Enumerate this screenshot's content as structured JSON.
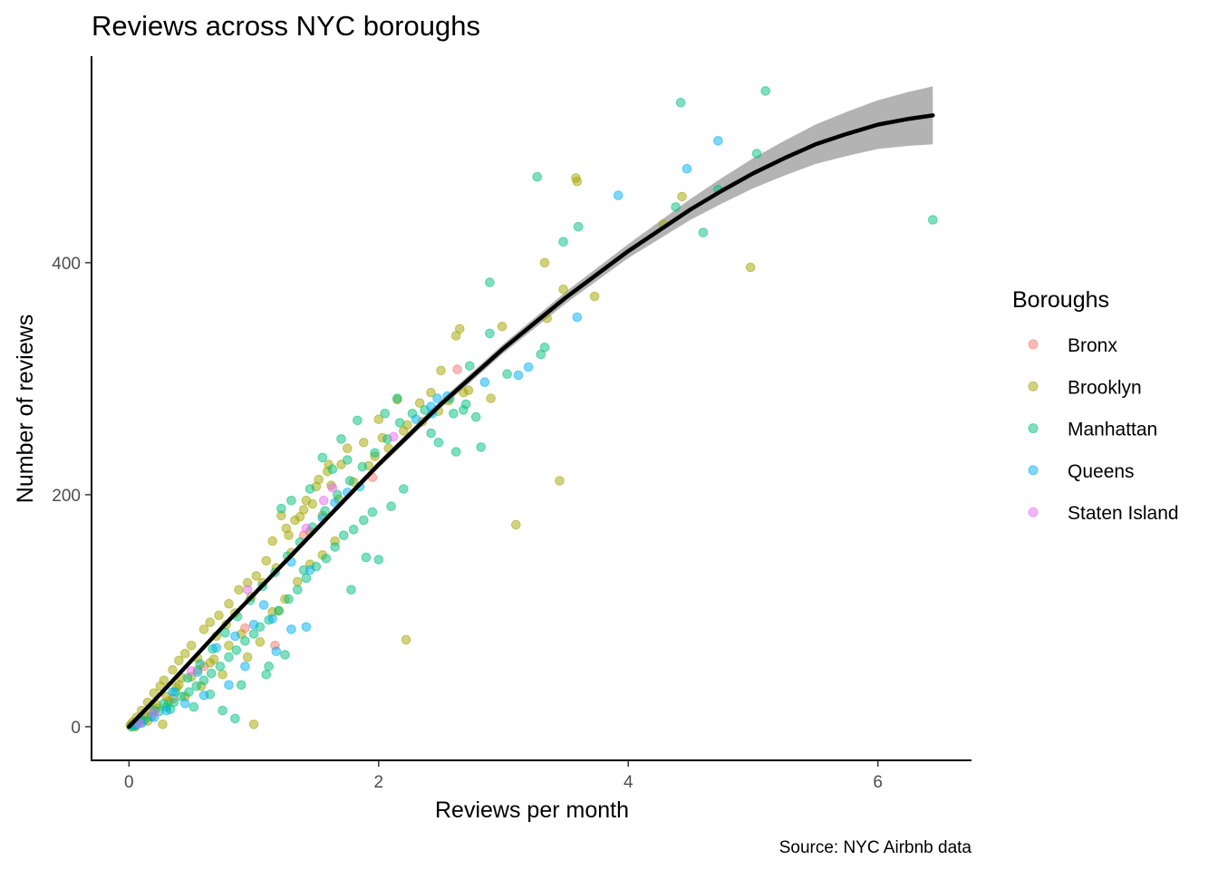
{
  "chart_data": {
    "type": "scatter",
    "title": "Reviews across NYC boroughs",
    "xlabel": "Reviews per month",
    "ylabel": "Number of reviews",
    "caption": "Source: NYC Airbnb data",
    "xlim": [
      -0.3,
      6.75
    ],
    "ylim": [
      -29,
      578
    ],
    "x_ticks": [
      0,
      2,
      4,
      6
    ],
    "y_ticks": [
      0,
      200,
      400
    ],
    "grid": false,
    "legend": {
      "title": "Boroughs",
      "position": "right"
    },
    "series": [
      {
        "name": "Bronx",
        "color": "#F8766D",
        "points": [
          [
            2.63,
            308
          ],
          [
            1.17,
            70
          ],
          [
            0.93,
            85
          ],
          [
            0.6,
            52
          ],
          [
            0.35,
            24
          ],
          [
            0.15,
            8
          ],
          [
            0.05,
            2
          ],
          [
            1.4,
            165
          ],
          [
            1.95,
            215
          ]
        ]
      },
      {
        "name": "Brooklyn",
        "color": "#A3A500",
        "points": [
          [
            3.58,
            473
          ],
          [
            3.59,
            470
          ],
          [
            4.43,
            457
          ],
          [
            4.28,
            433
          ],
          [
            3.33,
            400
          ],
          [
            4.98,
            396
          ],
          [
            3.48,
            377
          ],
          [
            3.73,
            371
          ],
          [
            2.99,
            345
          ],
          [
            2.65,
            343
          ],
          [
            2.62,
            337
          ],
          [
            3.35,
            352
          ],
          [
            2.5,
            307
          ],
          [
            2.42,
            288
          ],
          [
            2.33,
            279
          ],
          [
            2.15,
            282
          ],
          [
            2.0,
            265
          ],
          [
            2.2,
            255
          ],
          [
            2.03,
            249
          ],
          [
            1.97,
            233
          ],
          [
            1.88,
            245
          ],
          [
            1.75,
            240
          ],
          [
            1.7,
            226
          ],
          [
            1.59,
            220
          ],
          [
            1.62,
            208
          ],
          [
            1.5,
            207
          ],
          [
            1.47,
            192
          ],
          [
            1.4,
            187
          ],
          [
            1.33,
            178
          ],
          [
            1.22,
            182
          ],
          [
            1.28,
            165
          ],
          [
            1.15,
            160
          ],
          [
            1.1,
            143
          ],
          [
            1.02,
            130
          ],
          [
            0.95,
            124
          ],
          [
            0.88,
            118
          ],
          [
            0.8,
            106
          ],
          [
            0.72,
            96
          ],
          [
            0.65,
            90
          ],
          [
            0.6,
            84
          ],
          [
            0.5,
            70
          ],
          [
            0.45,
            63
          ],
          [
            0.4,
            57
          ],
          [
            0.35,
            49
          ],
          [
            0.28,
            40
          ],
          [
            0.25,
            35
          ],
          [
            0.2,
            29
          ],
          [
            0.15,
            21
          ],
          [
            0.1,
            14
          ],
          [
            0.06,
            8
          ],
          [
            0.03,
            4
          ],
          [
            0.01,
            1
          ],
          [
            0.02,
            2
          ],
          [
            0.05,
            0
          ],
          [
            0.08,
            6
          ],
          [
            0.12,
            10
          ],
          [
            0.18,
            14
          ],
          [
            0.22,
            19
          ],
          [
            0.3,
            26
          ],
          [
            0.38,
            34
          ],
          [
            0.42,
            42
          ],
          [
            0.55,
            59
          ],
          [
            0.7,
            78
          ],
          [
            0.78,
            88
          ],
          [
            0.85,
            98
          ],
          [
            0.98,
            112
          ],
          [
            1.07,
            124
          ],
          [
            1.18,
            137
          ],
          [
            1.3,
            150
          ],
          [
            1.45,
            168
          ],
          [
            1.55,
            182
          ],
          [
            1.68,
            196
          ],
          [
            1.8,
            211
          ],
          [
            1.92,
            225
          ],
          [
            2.08,
            240
          ],
          [
            2.23,
            260
          ],
          [
            2.35,
            263
          ],
          [
            2.48,
            272
          ],
          [
            2.56,
            281
          ],
          [
            2.68,
            288
          ],
          [
            2.72,
            290
          ],
          [
            2.9,
            283
          ],
          [
            3.1,
            174
          ],
          [
            3.45,
            212
          ],
          [
            2.22,
            75
          ],
          [
            1.0,
            2
          ],
          [
            0.27,
            2
          ],
          [
            1.05,
            73
          ],
          [
            0.95,
            60
          ],
          [
            0.75,
            45
          ],
          [
            0.5,
            43
          ],
          [
            0.58,
            35
          ],
          [
            0.32,
            22
          ],
          [
            0.45,
            26
          ],
          [
            0.65,
            55
          ],
          [
            0.8,
            70
          ],
          [
            0.9,
            80
          ],
          [
            1.15,
            99
          ],
          [
            1.25,
            110
          ],
          [
            1.35,
            125
          ],
          [
            1.45,
            140
          ],
          [
            1.55,
            148
          ],
          [
            1.65,
            160
          ],
          [
            1.2,
            100
          ],
          [
            0.68,
            58
          ],
          [
            0.4,
            36
          ],
          [
            0.22,
            16
          ],
          [
            0.15,
            5
          ],
          [
            0.55,
            49
          ],
          [
            1.6,
            226
          ],
          [
            1.52,
            213
          ],
          [
            1.42,
            195
          ],
          [
            1.37,
            181
          ],
          [
            1.26,
            171
          ]
        ]
      },
      {
        "name": "Manhattan",
        "color": "#00BF7D",
        "points": [
          [
            5.1,
            548
          ],
          [
            4.42,
            538
          ],
          [
            5.03,
            494
          ],
          [
            4.72,
            463
          ],
          [
            4.38,
            448
          ],
          [
            3.27,
            474
          ],
          [
            3.6,
            431
          ],
          [
            3.48,
            418
          ],
          [
            4.6,
            426
          ],
          [
            6.44,
            437
          ],
          [
            2.89,
            383
          ],
          [
            3.33,
            327
          ],
          [
            3.3,
            321
          ],
          [
            2.89,
            339
          ],
          [
            3.03,
            304
          ],
          [
            2.73,
            311
          ],
          [
            2.68,
            273
          ],
          [
            2.78,
            267
          ],
          [
            2.82,
            241
          ],
          [
            2.62,
            237
          ],
          [
            2.48,
            245
          ],
          [
            2.42,
            253
          ],
          [
            2.2,
            205
          ],
          [
            2.1,
            190
          ],
          [
            1.95,
            185
          ],
          [
            1.88,
            178
          ],
          [
            1.8,
            170
          ],
          [
            1.72,
            165
          ],
          [
            1.65,
            155
          ],
          [
            1.58,
            145
          ],
          [
            1.5,
            138
          ],
          [
            1.42,
            128
          ],
          [
            1.35,
            118
          ],
          [
            1.28,
            110
          ],
          [
            1.2,
            100
          ],
          [
            1.12,
            92
          ],
          [
            1.05,
            86
          ],
          [
            1.0,
            80
          ],
          [
            0.93,
            74
          ],
          [
            0.86,
            66
          ],
          [
            0.8,
            60
          ],
          [
            0.73,
            52
          ],
          [
            0.66,
            46
          ],
          [
            0.6,
            40
          ],
          [
            0.54,
            35
          ],
          [
            0.48,
            30
          ],
          [
            0.42,
            26
          ],
          [
            0.36,
            21
          ],
          [
            0.3,
            17
          ],
          [
            0.24,
            13
          ],
          [
            0.18,
            9
          ],
          [
            0.12,
            5
          ],
          [
            0.08,
            3
          ],
          [
            0.04,
            1
          ],
          [
            0.02,
            0
          ],
          [
            0.1,
            6
          ],
          [
            0.2,
            14
          ],
          [
            0.28,
            20
          ],
          [
            0.37,
            30
          ],
          [
            0.47,
            42
          ],
          [
            0.57,
            54
          ],
          [
            0.67,
            67
          ],
          [
            0.77,
            81
          ],
          [
            0.87,
            95
          ],
          [
            0.97,
            109
          ],
          [
            1.07,
            121
          ],
          [
            1.17,
            133
          ],
          [
            1.27,
            147
          ],
          [
            1.37,
            159
          ],
          [
            1.47,
            172
          ],
          [
            1.57,
            186
          ],
          [
            1.67,
            200
          ],
          [
            1.77,
            212
          ],
          [
            1.87,
            224
          ],
          [
            1.97,
            236
          ],
          [
            2.07,
            248
          ],
          [
            2.17,
            262
          ],
          [
            2.27,
            270
          ],
          [
            2.37,
            273
          ],
          [
            2.57,
            283
          ],
          [
            2.7,
            278
          ],
          [
            2.6,
            270
          ],
          [
            1.9,
            146
          ],
          [
            2.0,
            144
          ],
          [
            1.78,
            118
          ],
          [
            1.4,
            135
          ],
          [
            1.1,
            45
          ],
          [
            1.12,
            52
          ],
          [
            0.85,
            7
          ],
          [
            0.75,
            14
          ],
          [
            1.55,
            232
          ],
          [
            1.63,
            222
          ],
          [
            1.75,
            230
          ],
          [
            1.83,
            264
          ],
          [
            2.15,
            283
          ],
          [
            2.05,
            270
          ],
          [
            1.45,
            205
          ],
          [
            1.3,
            195
          ],
          [
            1.22,
            188
          ],
          [
            1.7,
            248
          ],
          [
            0.65,
            28
          ],
          [
            0.9,
            36
          ],
          [
            1.25,
            62
          ],
          [
            0.33,
            15
          ],
          [
            0.52,
            17
          ]
        ]
      },
      {
        "name": "Queens",
        "color": "#00B0F6",
        "points": [
          [
            4.72,
            505
          ],
          [
            4.47,
            481
          ],
          [
            3.92,
            458
          ],
          [
            3.59,
            353
          ],
          [
            3.2,
            310
          ],
          [
            3.12,
            303
          ],
          [
            2.55,
            285
          ],
          [
            2.47,
            283
          ],
          [
            2.42,
            276
          ],
          [
            2.43,
            270
          ],
          [
            1.85,
            207
          ],
          [
            1.75,
            202
          ],
          [
            1.65,
            193
          ],
          [
            1.15,
            93
          ],
          [
            1.45,
            135
          ],
          [
            1.42,
            86
          ],
          [
            1.3,
            84
          ],
          [
            1.18,
            65
          ],
          [
            0.93,
            52
          ],
          [
            0.8,
            36
          ],
          [
            0.6,
            27
          ],
          [
            0.45,
            20
          ],
          [
            0.3,
            14
          ],
          [
            0.2,
            8
          ],
          [
            0.1,
            3
          ],
          [
            0.05,
            1
          ],
          [
            1.0,
            88
          ],
          [
            0.7,
            68
          ],
          [
            0.55,
            47
          ],
          [
            0.35,
            30
          ],
          [
            1.3,
            142
          ],
          [
            1.55,
            180
          ],
          [
            2.3,
            265
          ],
          [
            2.85,
            297
          ],
          [
            1.08,
            105
          ],
          [
            0.85,
            78
          ]
        ]
      },
      {
        "name": "Staten Island",
        "color": "#E76BF3",
        "points": [
          [
            1.63,
            206
          ],
          [
            1.56,
            195
          ],
          [
            1.42,
            171
          ],
          [
            2.12,
            250
          ],
          [
            0.95,
            118
          ],
          [
            0.5,
            48
          ],
          [
            0.2,
            12
          ],
          [
            0.08,
            3
          ]
        ]
      }
    ],
    "smooth_line": {
      "color": "#000000",
      "ribbon_color": "#999999",
      "points": [
        [
          0.0,
          0
        ],
        [
          0.25,
          28
        ],
        [
          0.5,
          57
        ],
        [
          0.75,
          86
        ],
        [
          1.0,
          114
        ],
        [
          1.25,
          142
        ],
        [
          1.5,
          170
        ],
        [
          1.75,
          198
        ],
        [
          2.0,
          226
        ],
        [
          2.25,
          252
        ],
        [
          2.5,
          278
        ],
        [
          2.75,
          302
        ],
        [
          3.0,
          326
        ],
        [
          3.25,
          348
        ],
        [
          3.5,
          370
        ],
        [
          3.75,
          390
        ],
        [
          4.0,
          410
        ],
        [
          4.25,
          428
        ],
        [
          4.5,
          446
        ],
        [
          4.75,
          462
        ],
        [
          5.0,
          477
        ],
        [
          5.25,
          490
        ],
        [
          5.5,
          502
        ],
        [
          5.75,
          511
        ],
        [
          6.0,
          519
        ],
        [
          6.25,
          524
        ],
        [
          6.44,
          527
        ]
      ],
      "ribbon_halfwidth": [
        [
          0.0,
          2
        ],
        [
          2.0,
          3
        ],
        [
          3.0,
          4
        ],
        [
          3.5,
          5
        ],
        [
          4.0,
          6
        ],
        [
          4.5,
          9
        ],
        [
          5.0,
          13
        ],
        [
          5.5,
          17
        ],
        [
          6.0,
          21
        ],
        [
          6.44,
          25
        ]
      ]
    }
  }
}
